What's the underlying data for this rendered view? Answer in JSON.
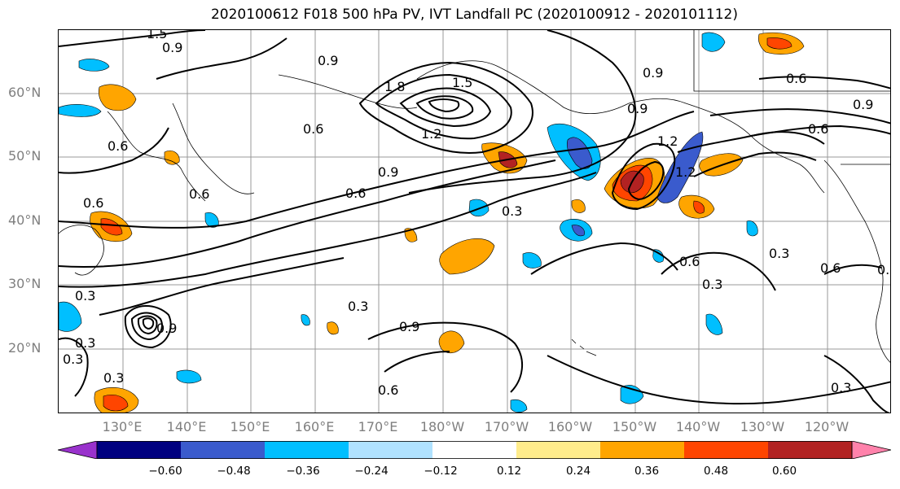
{
  "title": "2020100612 F018 500 hPa PV, IVT Landfall PC (2020100912 - 2020101112)",
  "lat_labels": [
    "60°N",
    "50°N",
    "40°N",
    "30°N",
    "20°N"
  ],
  "lon_labels": [
    "130°E",
    "140°E",
    "150°E",
    "160°E",
    "170°E",
    "180°W",
    "170°W",
    "160°W",
    "150°W",
    "140°W",
    "130°W",
    "120°W"
  ],
  "colorbar": {
    "ticks": [
      "−0.60",
      "−0.48",
      "−0.36",
      "−0.24",
      "−0.12",
      "0.12",
      "0.24",
      "0.36",
      "0.48",
      "0.60"
    ],
    "colors": [
      "#9932cc",
      "#000080",
      "#3a5bcd",
      "#00bfff",
      "#b0e2ff",
      "#ffffff",
      "#ffec8b",
      "#ffa500",
      "#ff4500",
      "#b22222",
      "#ff82ab"
    ]
  },
  "contour_labels": [
    "1.5",
    "0.9",
    "0.9",
    "1.8",
    "1.5",
    "1.2",
    "0.9",
    "0.6",
    "0.6",
    "0.9",
    "0.6",
    "0.3",
    "0.3",
    "0.3",
    "0.6",
    "0.9",
    "0.6",
    "0.9",
    "0.6",
    "0.3",
    "0.3",
    "0.6",
    "0.3",
    "0.3",
    "0.6",
    "0.3",
    "0.9",
    "1.2",
    "0.3",
    "0.6",
    "1.2",
    "0.9",
    "0.6",
    "0.3"
  ]
}
